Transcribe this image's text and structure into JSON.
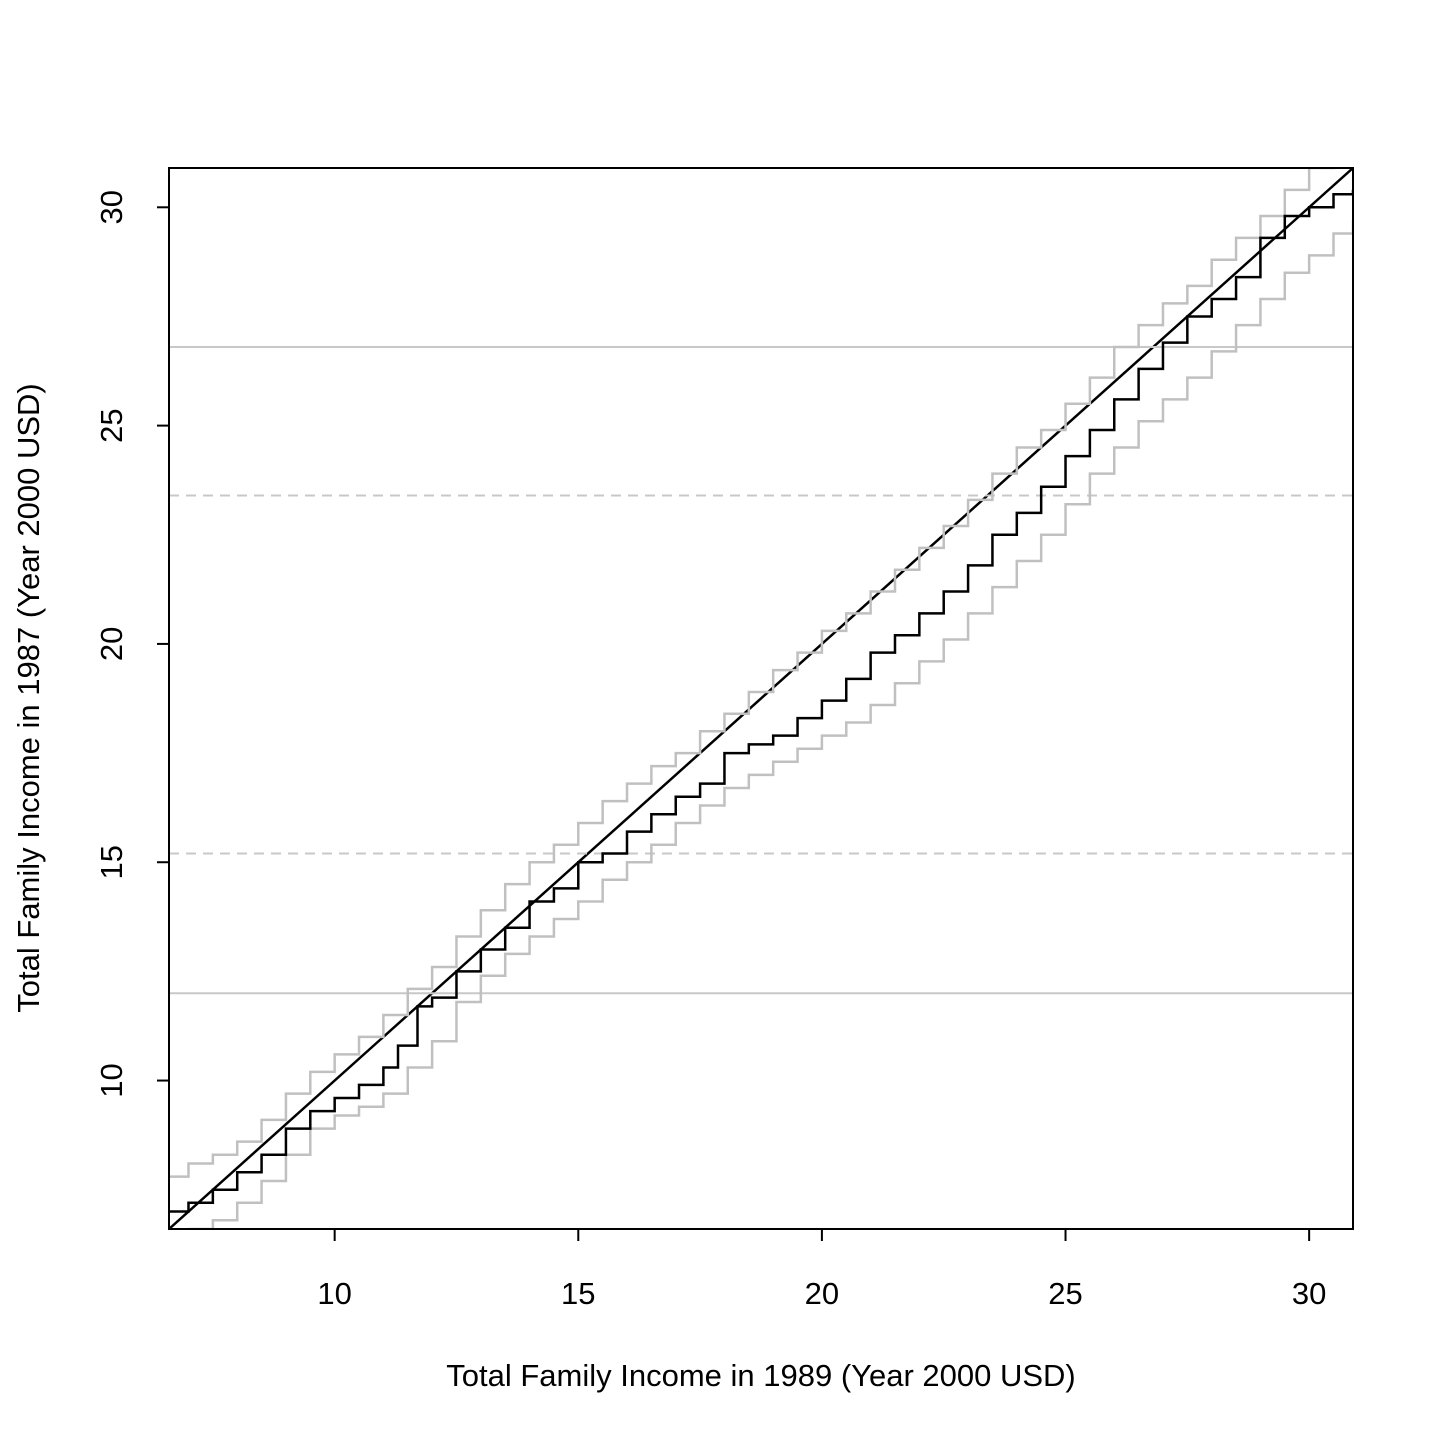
{
  "chart_data": {
    "type": "line",
    "xlabel": "Total Family Income in 1989 (Year 2000 USD)",
    "ylabel": "Total Family Income in 1987 (Year 2000 USD)",
    "xlim": [
      6.6,
      30.9
    ],
    "ylim": [
      6.6,
      30.9
    ],
    "x_ticks": [
      10,
      15,
      20,
      25,
      30
    ],
    "x_tick_labels": [
      "10",
      "15",
      "20",
      "25",
      "30"
    ],
    "y_ticks": [
      10,
      15,
      20,
      25,
      30
    ],
    "y_tick_labels": [
      "10",
      "15",
      "20",
      "25",
      "30"
    ],
    "grid": false,
    "reference_lines": [
      {
        "type": "diagonal",
        "slope": 1,
        "intercept": 0,
        "color": "#000000",
        "style": "solid"
      },
      {
        "type": "hline",
        "y": 26.8,
        "color": "#c8c8c8",
        "style": "solid"
      },
      {
        "type": "hline",
        "y": 23.4,
        "color": "#c8c8c8",
        "style": "dashed"
      },
      {
        "type": "hline",
        "y": 15.2,
        "color": "#c8c8c8",
        "style": "dashed"
      },
      {
        "type": "hline",
        "y": 12.0,
        "color": "#c8c8c8",
        "style": "solid"
      }
    ],
    "series": [
      {
        "color": "#000000",
        "style": "step",
        "x": [
          6.6,
          7.0,
          7.5,
          8.0,
          8.5,
          9.0,
          9.5,
          10.0,
          10.5,
          11.0,
          11.3,
          11.7,
          12.0,
          12.5,
          13.0,
          13.5,
          14.0,
          14.5,
          15.0,
          15.5,
          16.0,
          16.5,
          17.0,
          17.5,
          18.0,
          18.5,
          19.0,
          19.5,
          20.0,
          20.5,
          21.0,
          21.5,
          22.0,
          22.5,
          23.0,
          23.5,
          24.0,
          24.5,
          25.0,
          25.5,
          26.0,
          26.5,
          27.0,
          27.5,
          28.0,
          28.5,
          29.0,
          29.5,
          30.0,
          30.5,
          30.9
        ],
        "y": [
          7.0,
          7.2,
          7.5,
          7.9,
          8.3,
          8.9,
          9.3,
          9.6,
          9.9,
          10.3,
          10.8,
          11.7,
          11.9,
          12.5,
          13.0,
          13.5,
          14.1,
          14.4,
          15.0,
          15.2,
          15.7,
          16.1,
          16.5,
          16.8,
          17.5,
          17.7,
          17.9,
          18.3,
          18.7,
          19.2,
          19.8,
          20.2,
          20.7,
          21.2,
          21.8,
          22.5,
          23.0,
          23.6,
          24.3,
          24.9,
          25.6,
          26.3,
          26.9,
          27.5,
          27.9,
          28.4,
          29.3,
          29.8,
          30.0,
          30.3,
          30.4
        ]
      },
      {
        "color": "#c0c0c0",
        "style": "step",
        "x": [
          6.6,
          7.0,
          7.5,
          8.0,
          8.5,
          9.0,
          9.5,
          10.0,
          10.5,
          11.0,
          11.5,
          12.0,
          12.5,
          13.0,
          13.5,
          14.0,
          14.5,
          15.0,
          15.5,
          16.0,
          16.5,
          17.0,
          17.5,
          18.0,
          18.5,
          19.0,
          19.5,
          20.0,
          20.5,
          21.0,
          21.5,
          22.0,
          22.5,
          23.0,
          23.5,
          24.0,
          24.5,
          25.0,
          25.5,
          26.0,
          26.5,
          27.0,
          27.5,
          28.0,
          28.5,
          29.0,
          29.5,
          30.0,
          30.5,
          30.9
        ],
        "y": [
          7.8,
          8.1,
          8.3,
          8.6,
          9.1,
          9.7,
          10.2,
          10.6,
          11.0,
          11.5,
          12.1,
          12.6,
          13.3,
          13.9,
          14.5,
          15.0,
          15.4,
          15.9,
          16.4,
          16.8,
          17.2,
          17.5,
          18.0,
          18.4,
          18.9,
          19.4,
          19.8,
          20.3,
          20.7,
          21.2,
          21.7,
          22.2,
          22.7,
          23.3,
          23.9,
          24.5,
          24.9,
          25.5,
          26.1,
          26.8,
          27.3,
          27.8,
          28.2,
          28.8,
          29.3,
          29.8,
          30.4,
          30.9,
          30.95,
          31.0
        ]
      },
      {
        "color": "#c0c0c0",
        "style": "step",
        "x": [
          7.0,
          7.5,
          8.0,
          8.5,
          9.0,
          9.5,
          10.0,
          10.5,
          11.0,
          11.5,
          12.0,
          12.5,
          13.0,
          13.5,
          14.0,
          14.5,
          15.0,
          15.5,
          16.0,
          16.5,
          17.0,
          17.5,
          18.0,
          18.5,
          19.0,
          19.5,
          20.0,
          20.5,
          21.0,
          21.5,
          22.0,
          22.5,
          23.0,
          23.5,
          24.0,
          24.5,
          25.0,
          25.5,
          26.0,
          26.5,
          27.0,
          27.5,
          28.0,
          28.5,
          29.0,
          29.5,
          30.0,
          30.5,
          30.9
        ],
        "y": [
          6.6,
          6.8,
          7.2,
          7.7,
          8.3,
          8.9,
          9.2,
          9.4,
          9.7,
          10.3,
          10.9,
          11.8,
          12.4,
          12.9,
          13.3,
          13.7,
          14.1,
          14.6,
          15.0,
          15.4,
          15.9,
          16.3,
          16.7,
          17.0,
          17.3,
          17.6,
          17.9,
          18.2,
          18.6,
          19.1,
          19.6,
          20.1,
          20.7,
          21.3,
          21.9,
          22.5,
          23.2,
          23.9,
          24.5,
          25.1,
          25.6,
          26.1,
          26.7,
          27.3,
          27.9,
          28.5,
          28.9,
          29.4,
          29.7
        ]
      }
    ]
  }
}
